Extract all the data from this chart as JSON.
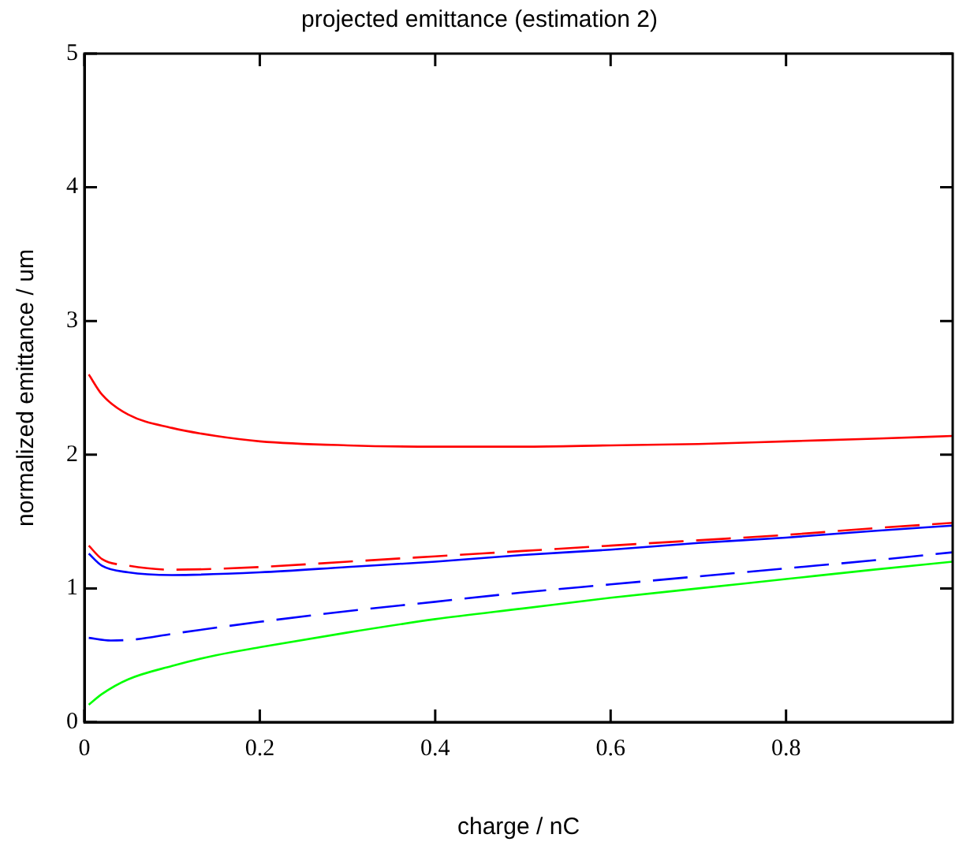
{
  "chart_data": {
    "type": "line",
    "title": "projected emittance (estimation 2)",
    "xlabel": "charge / nC",
    "ylabel": "normalized emittance / um",
    "xlim": [
      0,
      0.99
    ],
    "ylim": [
      0,
      5
    ],
    "xticks": [
      0,
      0.2,
      0.4,
      0.6,
      0.8
    ],
    "yticks": [
      0,
      1,
      2,
      3,
      4,
      5
    ],
    "grid": false,
    "legend": false,
    "marker": "none",
    "series": [
      {
        "color": "#ff0000",
        "line_style": "solid",
        "x": [
          0.005,
          0.02,
          0.05,
          0.1,
          0.15,
          0.2,
          0.3,
          0.4,
          0.5,
          0.6,
          0.7,
          0.8,
          0.9,
          0.99
        ],
        "values": [
          2.6,
          2.45,
          2.3,
          2.2,
          2.14,
          2.1,
          2.07,
          2.06,
          2.06,
          2.07,
          2.08,
          2.1,
          2.12,
          2.14
        ]
      },
      {
        "color": "#ff0000",
        "line_style": "dashed",
        "x": [
          0.005,
          0.02,
          0.05,
          0.1,
          0.2,
          0.3,
          0.4,
          0.5,
          0.6,
          0.7,
          0.8,
          0.9,
          0.99
        ],
        "values": [
          1.32,
          1.22,
          1.17,
          1.14,
          1.16,
          1.2,
          1.24,
          1.28,
          1.32,
          1.36,
          1.4,
          1.45,
          1.49
        ]
      },
      {
        "color": "#0000ff",
        "line_style": "solid",
        "x": [
          0.005,
          0.02,
          0.05,
          0.1,
          0.2,
          0.3,
          0.4,
          0.5,
          0.6,
          0.7,
          0.8,
          0.9,
          0.99
        ],
        "values": [
          1.26,
          1.17,
          1.12,
          1.1,
          1.12,
          1.16,
          1.2,
          1.25,
          1.29,
          1.34,
          1.38,
          1.43,
          1.47
        ]
      },
      {
        "color": "#0000ff",
        "line_style": "dashed",
        "x": [
          0.005,
          0.03,
          0.06,
          0.1,
          0.2,
          0.3,
          0.4,
          0.5,
          0.6,
          0.7,
          0.8,
          0.9,
          0.99
        ],
        "values": [
          0.63,
          0.61,
          0.62,
          0.66,
          0.75,
          0.83,
          0.9,
          0.97,
          1.03,
          1.09,
          1.15,
          1.21,
          1.27
        ]
      },
      {
        "color": "#00ff00",
        "line_style": "solid",
        "x": [
          0.005,
          0.02,
          0.05,
          0.1,
          0.15,
          0.2,
          0.3,
          0.4,
          0.5,
          0.6,
          0.7,
          0.8,
          0.9,
          0.99
        ],
        "values": [
          0.13,
          0.21,
          0.32,
          0.42,
          0.5,
          0.56,
          0.67,
          0.77,
          0.85,
          0.93,
          1.0,
          1.07,
          1.14,
          1.2
        ]
      }
    ]
  }
}
